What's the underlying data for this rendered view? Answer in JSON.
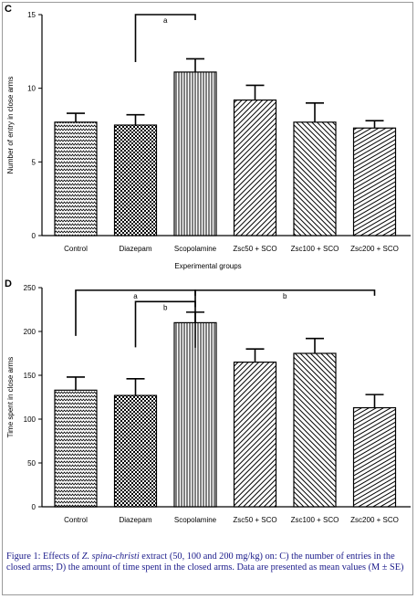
{
  "chart_data": [
    {
      "type": "bar",
      "panel_label": "C",
      "categories": [
        "Control",
        "Diazepam",
        "Scopolamine",
        "Zsc50 + SCO",
        "Zsc100 + SCO",
        "Zsc200 + SCO"
      ],
      "values": [
        7.7,
        7.5,
        11.1,
        9.2,
        7.7,
        7.3
      ],
      "errors": [
        0.6,
        0.7,
        0.9,
        1.0,
        1.3,
        0.5
      ],
      "patterns": [
        "zigzag",
        "checker",
        "vertical",
        "diag-left",
        "diag-right",
        "diag-steep"
      ],
      "xlabel": "Experimental groups",
      "ylabel": "Number of entry in close arms",
      "ylim": [
        0,
        15
      ],
      "yticks": [
        0,
        5,
        10,
        15
      ],
      "annotations": [
        {
          "label": "a",
          "from": 1,
          "to": 2,
          "level": 15
        }
      ]
    },
    {
      "type": "bar",
      "panel_label": "D",
      "categories": [
        "Control",
        "Diazepam",
        "Scopolamine",
        "Zsc50 + SCO",
        "Zsc100 + SCO",
        "Zsc200 + SCO"
      ],
      "values": [
        133,
        127,
        210,
        165,
        175,
        113
      ],
      "errors": [
        15,
        19,
        12,
        15,
        17,
        15
      ],
      "patterns": [
        "zigzag",
        "checker",
        "vertical",
        "diag-left",
        "diag-right",
        "diag-steep"
      ],
      "xlabel": "",
      "ylabel": "Time spent in close arms",
      "ylim": [
        0,
        250
      ],
      "yticks": [
        0,
        50,
        100,
        150,
        200,
        250
      ],
      "annotations": [
        {
          "label": "a",
          "from": 0,
          "to": 2,
          "level": 247
        },
        {
          "label": "b",
          "from": 1,
          "to": 2,
          "level": 234
        },
        {
          "label": "b",
          "from": 2,
          "to": 5,
          "level": 247
        }
      ]
    }
  ],
  "caption": {
    "part1": "Figure 1: Effects of ",
    "species": "Z. spina-christi",
    "part2": " extract (50, 100 and 200 mg/kg) on: C) the number of entries in the closed arms; D) the amount of time spent in the closed arms. Data are presented as mean values (M ± SE)"
  },
  "colors": {
    "axis": "#000000",
    "caption_text": "#1a1a8a",
    "frame": "#9a9a9a"
  }
}
